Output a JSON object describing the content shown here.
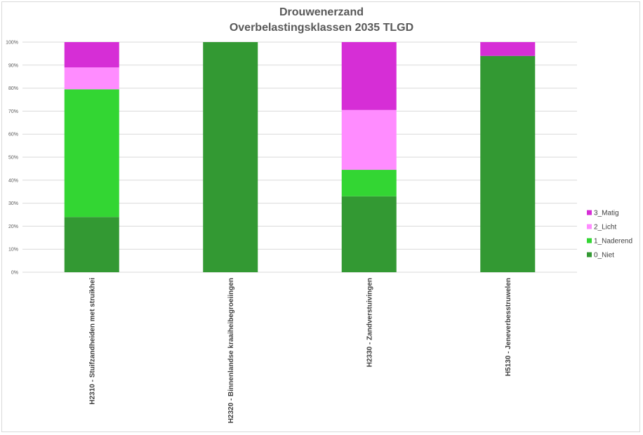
{
  "chart_data": {
    "type": "bar",
    "stacked": true,
    "normalized": true,
    "title": "Drouwenerzand",
    "subtitle": "Overbelastingsklassen 2035 TLGD",
    "categories": [
      "H2310 - Stuifzandheiden met struikhei",
      "H2320 - Binnenlandse kraaiheibegroeiingen",
      "H2330 - Zandverstuivingen",
      "H5130 - Jeneverbesstruwelen"
    ],
    "series": [
      {
        "name": "0_Niet",
        "color": "#339933",
        "values": [
          24,
          100,
          33,
          94
        ]
      },
      {
        "name": "1_Naderend",
        "color": "#33d633",
        "values": [
          55.5,
          0,
          11.5,
          0
        ]
      },
      {
        "name": "2_Licht",
        "color": "#ff8cff",
        "values": [
          9.5,
          0,
          26,
          0
        ]
      },
      {
        "name": "3_Matig",
        "color": "#d62ed6",
        "values": [
          11,
          0,
          29.5,
          6
        ]
      }
    ],
    "yticks": [
      "0%",
      "10%",
      "20%",
      "30%",
      "40%",
      "50%",
      "60%",
      "70%",
      "80%",
      "90%",
      "100%"
    ],
    "ylim": [
      0,
      100
    ],
    "grid": true,
    "legend": "right"
  }
}
